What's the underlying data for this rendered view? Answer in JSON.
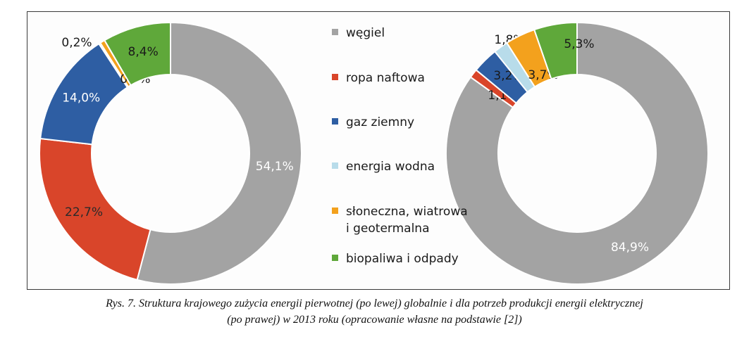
{
  "colors": {
    "wegiel": "#a3a3a3",
    "ropa": "#d9452a",
    "gaz": "#2e5ea3",
    "woda": "#b8dcea",
    "slonce": "#f3a11d",
    "bio": "#5fa83a"
  },
  "legend": [
    {
      "label": "węgiel",
      "color": "#a3a3a3"
    },
    {
      "label": "ropa naftowa",
      "color": "#d9452a"
    },
    {
      "label": "gaz ziemny",
      "color": "#2e5ea3"
    },
    {
      "label": "energia wodna",
      "color": "#b8dcea"
    },
    {
      "label": "słoneczna, wiatrowa",
      "label2": "i geotermalna",
      "color": "#f3a11d"
    },
    {
      "label": "biopaliwa i odpady",
      "color": "#5fa83a"
    }
  ],
  "chart_data": [
    {
      "type": "pie",
      "subtype": "donut",
      "categories": [
        "węgiel",
        "ropa naftowa",
        "gaz ziemny",
        "energia wodna",
        "słoneczna, wiatrowa i geotermalna",
        "biopaliwa i odpady"
      ],
      "values": [
        54.1,
        22.7,
        14.0,
        0.2,
        0.6,
        8.4
      ],
      "labels": [
        "54,1%",
        "22,7%",
        "14,0%",
        "0,2%",
        "0,6%",
        "8,4%"
      ]
    },
    {
      "type": "pie",
      "subtype": "donut",
      "categories": [
        "węgiel",
        "ropa naftowa",
        "gaz ziemny",
        "energia wodna",
        "słoneczna, wiatrowa i geotermalna",
        "biopaliwa i odpady"
      ],
      "values": [
        84.9,
        1.1,
        3.2,
        1.8,
        3.7,
        5.3
      ],
      "labels": [
        "84,9%",
        "1,1%",
        "3,2%",
        "1,8%",
        "3,7%",
        "5,3%"
      ]
    }
  ],
  "caption": {
    "line1": "Rys. 7. Struktura krajowego zużycia energii pierwotnej (po lewej) globalnie i dla potrzeb produkcji energii elektrycznej",
    "line2": "(po prawej) w 2013 roku (opracowanie własne na podstawie [2])"
  }
}
